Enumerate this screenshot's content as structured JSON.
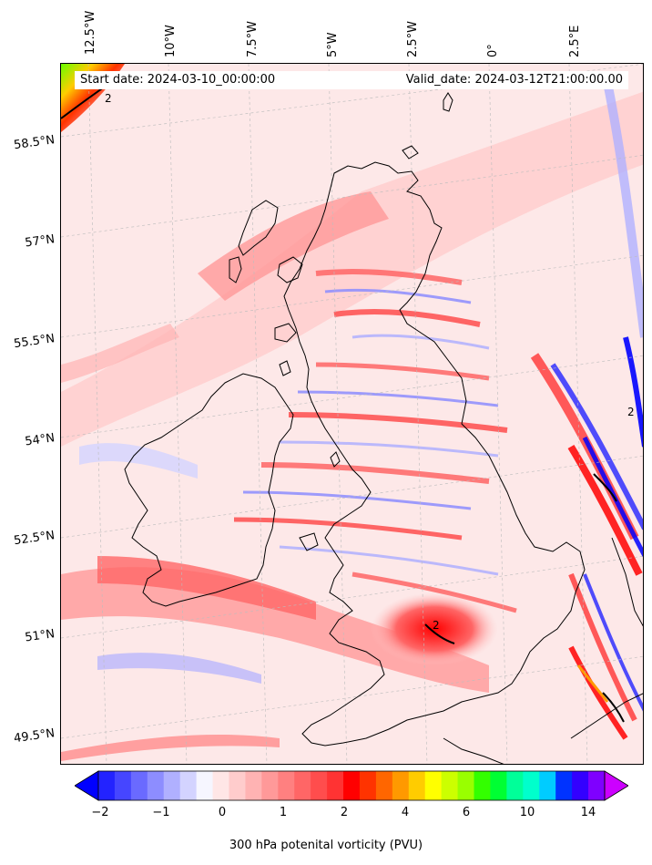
{
  "header": {
    "start_date": "Start date: 2024-03-10_00:00:00",
    "valid_date": "Valid_date: 2024-03-12T21:00:00.00"
  },
  "axes": {
    "longitude_labels": [
      "12.5°W",
      "10°W",
      "7.5°W",
      "5°W",
      "2.5°W",
      "0°",
      "2.5°E"
    ],
    "latitude_labels": [
      "58.5°N",
      "57°N",
      "55.5°N",
      "54°N",
      "52.5°N",
      "51°N",
      "49.5°N"
    ]
  },
  "contour_labels": [
    "2",
    "2",
    "2"
  ],
  "colorbar": {
    "title": "300 hPa potenital vorticity (PVU)",
    "tick_labels": [
      "−2",
      "−1",
      "0",
      "1",
      "2",
      "4",
      "6",
      "10",
      "14"
    ],
    "colors": [
      "#0000ff",
      "#2323ff",
      "#4646ff",
      "#6a6aff",
      "#8d8dff",
      "#b0b0ff",
      "#d3d3ff",
      "#f6f6ff",
      "#ffe6e6",
      "#ffcccc",
      "#ffb3b3",
      "#ff9999",
      "#ff8080",
      "#ff6666",
      "#ff4d4d",
      "#ff3333",
      "#ff0000",
      "#ff3300",
      "#ff6600",
      "#ff9900",
      "#ffcc00",
      "#ffff00",
      "#ccff00",
      "#99ff00",
      "#33ff00",
      "#00ff33",
      "#00ff99",
      "#00ffcc",
      "#00ccff",
      "#0033ff",
      "#3300ff",
      "#7f00ff",
      "#cc00ff"
    ]
  },
  "map_style": {
    "background": "#fde8e8",
    "coastline": "#000000",
    "gridline": "#bdbdbd"
  }
}
